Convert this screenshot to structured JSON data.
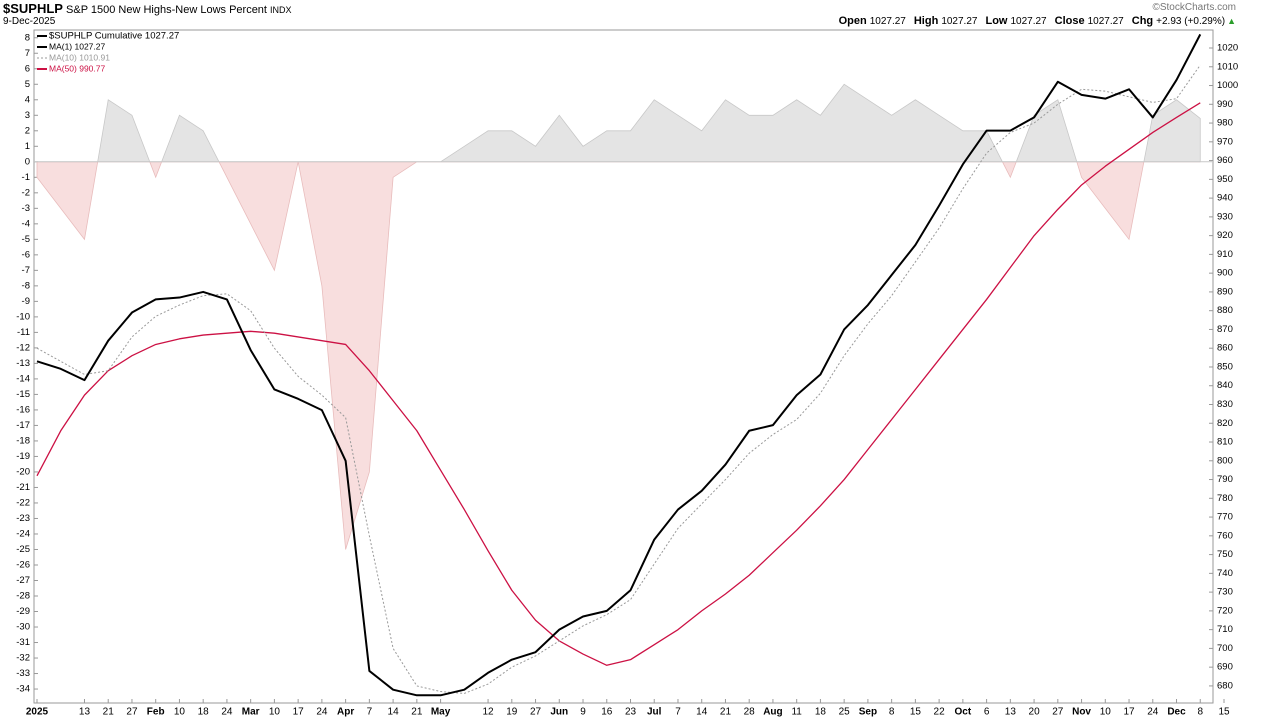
{
  "header": {
    "symbol": "$SUPHLP",
    "title": "S&P 1500 New Highs-New Lows Percent",
    "exchange": "INDX",
    "date": "9-Dec-2025",
    "credit": "©StockCharts.com",
    "quote": [
      {
        "label": "Open",
        "value": 1027.27
      },
      {
        "label": "High",
        "value": 1027.27
      },
      {
        "label": "Low",
        "value": 1027.27
      },
      {
        "label": "Close",
        "value": 1027.27
      }
    ],
    "change_label": "Chg",
    "change": "+2.93 (+0.29%)"
  },
  "chart_data": {
    "type": "line",
    "legend_title": "$SUPHLP Cumulative 1027.27",
    "legend_title_color": "#000000",
    "categories": [
      "2025",
      null,
      "13",
      "21",
      "27",
      "Feb",
      "10",
      "18",
      "24",
      "Mar",
      "10",
      "17",
      "24",
      "Apr",
      "7",
      "14",
      "21",
      "May",
      null,
      "12",
      "19",
      "27",
      "Jun",
      "9",
      "16",
      "23",
      "Jul",
      "7",
      "14",
      "21",
      "28",
      "Aug",
      "11",
      "18",
      "25",
      "Sep",
      "8",
      "15",
      "22",
      "Oct",
      "6",
      "13",
      "20",
      "27",
      "Nov",
      "10",
      "17",
      "24",
      "Dec",
      "8",
      "15"
    ],
    "histogram": {
      "color": "#e4e4e4",
      "negative_color": "#f8dede",
      "values": [
        -1,
        -3,
        -5,
        4,
        3,
        -1,
        3,
        2,
        -1,
        -4,
        -7,
        0,
        -8,
        -25,
        -20,
        -1,
        0,
        0,
        1,
        2,
        2,
        1,
        3,
        1,
        2,
        2,
        4,
        3,
        2,
        4,
        3,
        3,
        4,
        3,
        5,
        4,
        3,
        4,
        3,
        2,
        2,
        -1,
        3,
        4,
        -1,
        -3,
        -5,
        3,
        4,
        2.8,
        null
      ]
    },
    "series": [
      {
        "name": "MA(1) 1027.27",
        "color": "#000000",
        "axis": "y2",
        "values": [
          853,
          849,
          843,
          864,
          879,
          886,
          887,
          890,
          886,
          859,
          838,
          833,
          827,
          800,
          688,
          678,
          675,
          675,
          678,
          687,
          694,
          698,
          710,
          717,
          720,
          731,
          758,
          774,
          784,
          798,
          816,
          819,
          835,
          846,
          870,
          883,
          899,
          915,
          936,
          958,
          976,
          976,
          983,
          1002,
          995,
          993,
          998,
          983,
          1003,
          1027.27,
          null
        ]
      },
      {
        "name": "MA(10) 1010.91",
        "color": "#999999",
        "dashed": true,
        "axis": "y2",
        "values": [
          860,
          853,
          846,
          848,
          866,
          877,
          883,
          888,
          889,
          880,
          860,
          845,
          835,
          823,
          760,
          700,
          680,
          677,
          676,
          681,
          690,
          696,
          704,
          712,
          718,
          726,
          745,
          764,
          777,
          790,
          804,
          814,
          822,
          836,
          856,
          873,
          888,
          906,
          924,
          945,
          964,
          975,
          980,
          990,
          998,
          997,
          994,
          991,
          993,
          1010.91,
          null
        ]
      },
      {
        "name": "MA(50) 990.77",
        "color": "#cc1144",
        "axis": "y2",
        "values": [
          792,
          816,
          835,
          848,
          856,
          862,
          865,
          867,
          868,
          869,
          868,
          866,
          864,
          862,
          848,
          832,
          816,
          795,
          774,
          752,
          731,
          715,
          704,
          697,
          691,
          694,
          702,
          710,
          720,
          729,
          739,
          751,
          763,
          776,
          790,
          806,
          822,
          838,
          854,
          870,
          886,
          903,
          920,
          934,
          947,
          957,
          966,
          975,
          983,
          990.77,
          null
        ]
      }
    ],
    "ylim": [
      -34.9,
      8.5
    ],
    "yticks": [
      8,
      7,
      6,
      5,
      4,
      3,
      2,
      1,
      0,
      -1,
      -2,
      -3,
      -4,
      -5,
      -6,
      -7,
      -8,
      -9,
      -10,
      -11,
      -12,
      -13,
      -14,
      -15,
      -16,
      -17,
      -18,
      -19,
      -20,
      -21,
      -22,
      -23,
      -24,
      -25,
      -26,
      -27,
      -28,
      -29,
      -30,
      -31,
      -32,
      -33,
      -34
    ],
    "y2lim": [
      670.9,
      1029.6
    ],
    "y2ticks": [
      680,
      690,
      700,
      710,
      720,
      730,
      740,
      750,
      760,
      770,
      780,
      790,
      800,
      810,
      820,
      830,
      840,
      850,
      860,
      870,
      880,
      890,
      900,
      910,
      920,
      930,
      940,
      950,
      960,
      970,
      980,
      990,
      1000,
      1010,
      1020
    ]
  }
}
